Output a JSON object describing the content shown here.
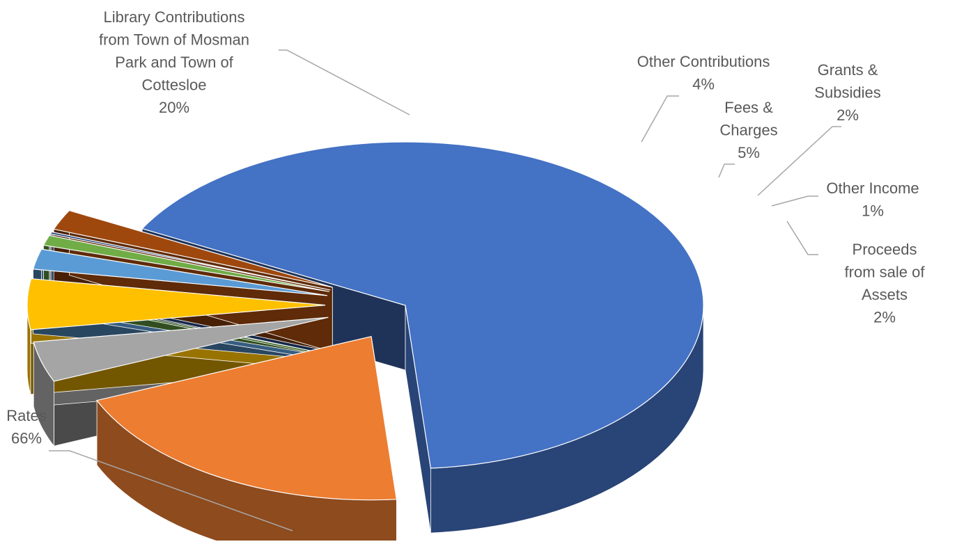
{
  "chart_data": {
    "type": "pie",
    "variant": "3d-exploded",
    "slices": [
      {
        "label_lines": [
          "Rates"
        ],
        "value_label": "66%",
        "value": 66,
        "color": "#4472C4"
      },
      {
        "label_lines": [
          "Library Contributions",
          "from Town of Mosman",
          "Park and Town of",
          "Cottesloe"
        ],
        "value_label": "20%",
        "value": 20,
        "color": "#ED7D31"
      },
      {
        "label_lines": [
          "Other Contributions"
        ],
        "value_label": "4%",
        "value": 4,
        "color": "#A5A5A5"
      },
      {
        "label_lines": [
          "Fees &",
          "Charges"
        ],
        "value_label": "5%",
        "value": 5,
        "color": "#FFC000"
      },
      {
        "label_lines": [
          "Grants &",
          "Subsidies"
        ],
        "value_label": "2%",
        "value": 2,
        "color": "#5B9BD5"
      },
      {
        "label_lines": [
          "Other Income"
        ],
        "value_label": "1%",
        "value": 1,
        "color": "#70AD47"
      },
      {
        "label_lines": [],
        "value_label": "",
        "value": 0.2,
        "color": "#264478"
      },
      {
        "label_lines": [
          "Proceeds",
          "from sale of",
          "Assets"
        ],
        "value_label": "2%",
        "value": 2,
        "color": "#9E480E"
      }
    ]
  }
}
